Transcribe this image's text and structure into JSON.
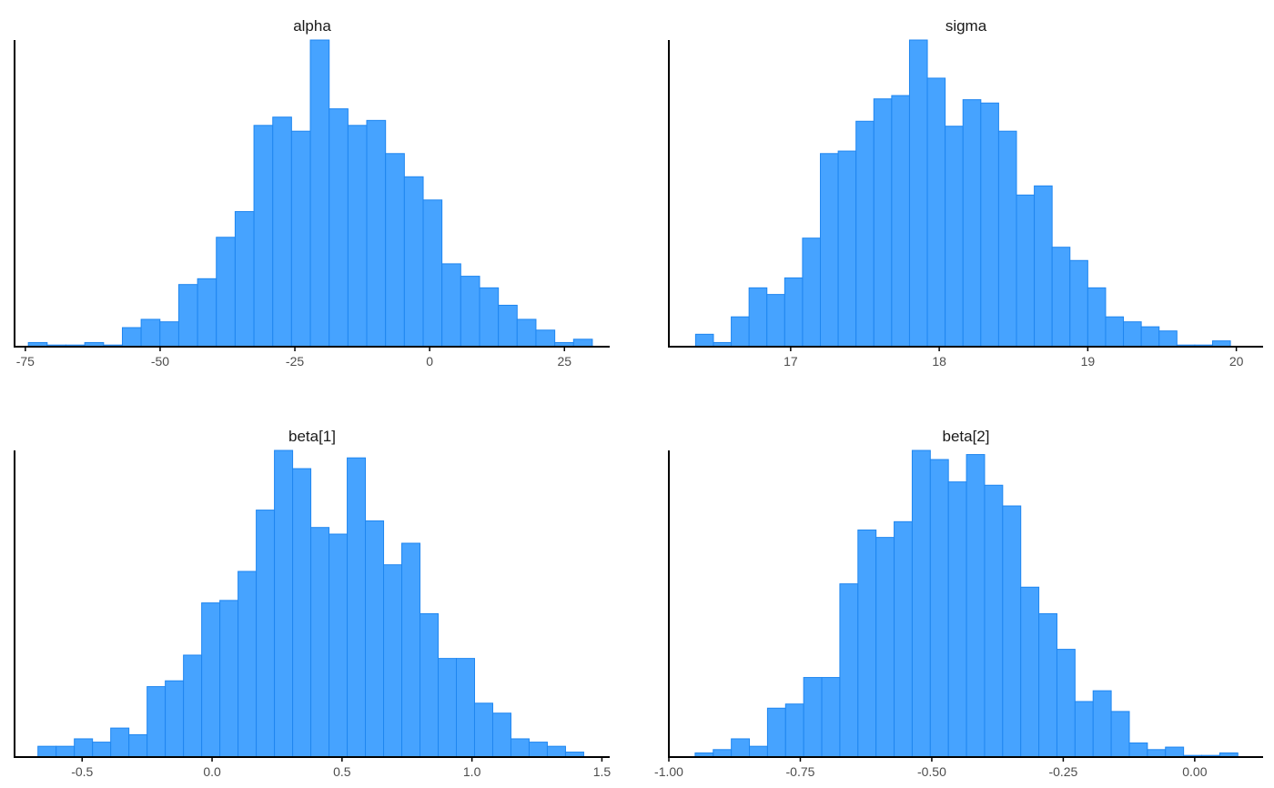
{
  "chart_data": [
    {
      "type": "bar",
      "title": "alpha",
      "xlim": [
        -77,
        33.4
      ],
      "ymax": 37,
      "xticks": [
        -75,
        -50,
        -25,
        0,
        25
      ],
      "xtick_labels": [
        "-75",
        "-50",
        "-25",
        "0",
        "25"
      ],
      "bins": [
        -74.44,
        -70.95,
        -67.47,
        -63.98,
        -60.49,
        -57.0,
        -53.52,
        -50.03,
        -46.54,
        -43.05,
        -39.57,
        -36.08,
        -32.59,
        -29.1,
        -25.62,
        -22.13,
        -18.64,
        -15.15,
        -11.67,
        -8.18,
        -4.69,
        -1.2,
        2.28,
        5.77,
        9.26,
        12.75,
        16.23,
        19.72,
        23.21,
        26.7,
        30.18
      ],
      "counts": [
        0.5,
        0.2,
        0.2,
        0.5,
        0.2,
        2.3,
        3.3,
        3.0,
        7.5,
        8.2,
        13.2,
        16.3,
        26.7,
        27.7,
        26.0,
        37.0,
        28.7,
        26.7,
        27.3,
        23.3,
        20.5,
        17.7,
        10.0,
        8.5,
        7.1,
        5.0,
        3.3,
        2.0,
        0.5,
        0.9
      ]
    },
    {
      "type": "bar",
      "title": "sigma",
      "xlim": [
        16.18,
        20.18
      ],
      "ymax": 37,
      "xticks": [
        17,
        18,
        19,
        20
      ],
      "xtick_labels": [
        "17",
        "18",
        "19",
        "20"
      ],
      "bins": [
        16.36,
        16.48,
        16.6,
        16.72,
        16.84,
        16.96,
        17.08,
        17.2,
        17.32,
        17.44,
        17.56,
        17.68,
        17.8,
        17.92,
        18.04,
        18.16,
        18.28,
        18.4,
        18.52,
        18.64,
        18.76,
        18.88,
        19.0,
        19.12,
        19.24,
        19.36,
        19.48,
        19.6,
        19.72,
        19.84,
        19.96
      ],
      "counts": [
        1.5,
        0.5,
        3.6,
        7.1,
        6.3,
        8.3,
        13.1,
        23.3,
        23.6,
        27.2,
        29.9,
        30.3,
        37.0,
        32.4,
        26.6,
        29.8,
        29.4,
        26.0,
        18.3,
        19.4,
        12.0,
        10.4,
        7.1,
        3.6,
        3.0,
        2.4,
        1.9,
        0.2,
        0.2,
        0.7
      ]
    },
    {
      "type": "bar",
      "title": "beta[1]",
      "xlim": [
        -0.76,
        1.53
      ],
      "ymax": 37,
      "xticks": [
        -0.5,
        0.0,
        0.5,
        1.0,
        1.5
      ],
      "xtick_labels": [
        "-0.5",
        "0.0",
        "0.5",
        "1.0",
        "1.5"
      ],
      "bins": [
        -0.67,
        -0.6,
        -0.53,
        -0.46,
        -0.39,
        -0.32,
        -0.25,
        -0.18,
        -0.11,
        -0.04,
        0.03,
        0.1,
        0.17,
        0.24,
        0.31,
        0.38,
        0.45,
        0.52,
        0.59,
        0.66,
        0.73,
        0.8,
        0.87,
        0.94,
        1.01,
        1.08,
        1.15,
        1.22,
        1.29,
        1.36,
        1.43
      ],
      "counts": [
        1.3,
        1.3,
        2.2,
        1.8,
        3.5,
        2.7,
        8.5,
        9.2,
        12.3,
        18.6,
        18.9,
        22.4,
        29.8,
        37.0,
        34.8,
        27.7,
        26.9,
        36.1,
        28.5,
        23.2,
        25.8,
        17.3,
        11.9,
        11.9,
        6.5,
        5.3,
        2.2,
        1.8,
        1.3,
        0.6
      ]
    },
    {
      "type": "bar",
      "title": "beta[2]",
      "xlim": [
        -1.0,
        0.13
      ],
      "ymax": 37,
      "xticks": [
        -1.0,
        -0.75,
        -0.5,
        -0.25,
        0.0
      ],
      "xtick_labels": [
        "-1.00",
        "-0.75",
        "-0.50",
        "-0.25",
        "0.00"
      ],
      "bins": [
        -0.95,
        -0.9156,
        -0.8812,
        -0.8468,
        -0.8124,
        -0.778,
        -0.7436,
        -0.7092,
        -0.6748,
        -0.6404,
        -0.606,
        -0.5716,
        -0.5372,
        -0.5028,
        -0.4684,
        -0.434,
        -0.3996,
        -0.3652,
        -0.3308,
        -0.2964,
        -0.262,
        -0.2276,
        -0.1932,
        -0.1588,
        -0.1244,
        -0.09,
        -0.0556,
        -0.0212,
        0.0132,
        0.0476,
        0.082
      ],
      "counts": [
        0.5,
        0.9,
        2.2,
        1.3,
        5.9,
        6.4,
        9.6,
        9.6,
        20.9,
        27.4,
        26.5,
        28.4,
        37.0,
        35.9,
        33.2,
        36.5,
        32.8,
        30.3,
        20.5,
        17.3,
        13.0,
        6.7,
        8.0,
        5.5,
        1.7,
        0.9,
        1.2,
        0.2,
        0.2,
        0.5
      ]
    }
  ]
}
